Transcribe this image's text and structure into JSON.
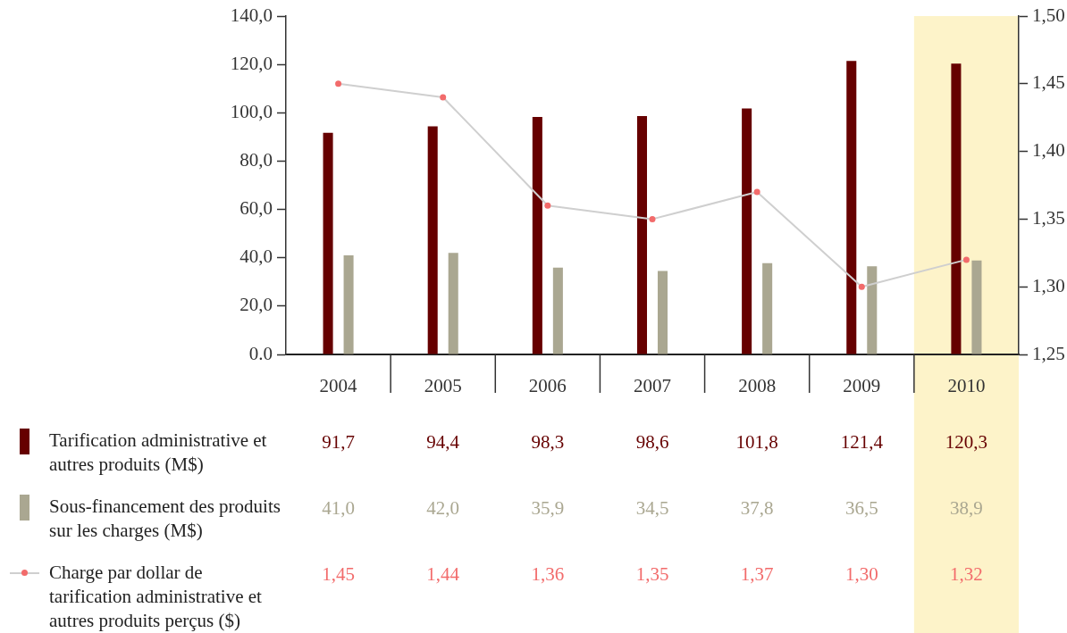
{
  "chart_data": {
    "type": "bar",
    "categories": [
      "2004",
      "2005",
      "2006",
      "2007",
      "2008",
      "2009",
      "2010"
    ],
    "series": [
      {
        "name": "Tarification administrative et autres produits (M$)",
        "color": "#660000",
        "values": [
          91.7,
          94.4,
          98.3,
          98.6,
          101.8,
          121.4,
          120.3
        ],
        "value_labels": [
          "91,7",
          "94,4",
          "98,3",
          "98,6",
          "101,8",
          "121,4",
          "120,3"
        ]
      },
      {
        "name": "Sous-financement des produits sur les charges (M$)",
        "color": "#aaa791",
        "values": [
          41.0,
          42.0,
          35.9,
          34.5,
          37.8,
          36.5,
          38.9
        ],
        "value_labels": [
          "41,0",
          "42,0",
          "35,9",
          "34,5",
          "37,8",
          "36,5",
          "38,9"
        ]
      },
      {
        "name": "Charge par dollar de tarification administrative et autres produits perçus ($)",
        "type": "line",
        "axis": "y2",
        "color": "#f26b6b",
        "values": [
          1.45,
          1.44,
          1.36,
          1.35,
          1.37,
          1.3,
          1.32
        ],
        "value_labels": [
          "1,45",
          "1,44",
          "1,36",
          "1,35",
          "1,37",
          "1,30",
          "1,32"
        ]
      }
    ],
    "ylim": [
      0,
      140
    ],
    "yticks": [
      {
        "value": 0,
        "label": "0.0"
      },
      {
        "value": 20,
        "label": "20,0"
      },
      {
        "value": 40,
        "label": "40,0"
      },
      {
        "value": 60,
        "label": "60,0"
      },
      {
        "value": 80,
        "label": "80,0"
      },
      {
        "value": 100,
        "label": "100,0"
      },
      {
        "value": 120,
        "label": "120,0"
      },
      {
        "value": 140,
        "label": "140,0"
      }
    ],
    "y2lim": [
      1.25,
      1.5
    ],
    "y2ticks": [
      {
        "value": 1.25,
        "label": "1,25"
      },
      {
        "value": 1.3,
        "label": "1,30"
      },
      {
        "value": 1.35,
        "label": "1,35"
      },
      {
        "value": 1.4,
        "label": "1,40"
      },
      {
        "value": 1.45,
        "label": "1,45"
      },
      {
        "value": 1.5,
        "label": "1,50"
      }
    ],
    "bands": [
      {
        "axis": "x",
        "from": "2010",
        "to": "2010",
        "color": "#fdf3c9"
      }
    ],
    "legend": "bottom left",
    "marker": "circle"
  }
}
